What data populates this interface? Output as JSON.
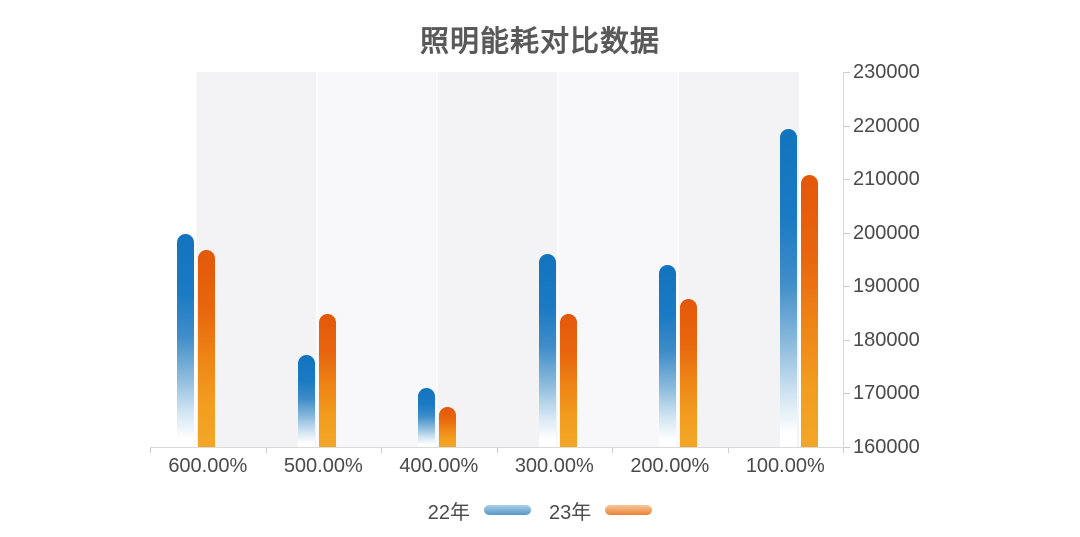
{
  "title": "照明能耗对比数据",
  "legend": {
    "items": [
      {
        "label": "22年",
        "swatch": "blue-gradient-swatch"
      },
      {
        "label": "23年",
        "swatch": "orange-gradient-swatch"
      }
    ],
    "position": "bottom-center"
  },
  "colors": {
    "title_text": "#595959",
    "axis_label_text": "#4a4a4a",
    "axis_line": "#d9d9d9",
    "tick_line": "#cccccc",
    "bar_blue_top": "#1274bd",
    "bar_blue_bottom_fade": "#ffffff",
    "bar_orange_top": "#e3580a",
    "bar_orange_bottom": "#f2a627",
    "background_band_dark": "#f3f3f6",
    "background_band_light": "#f8f8fa",
    "page_background": "#ffffff"
  },
  "chart_data": {
    "type": "bar",
    "title": "照明能耗对比数据",
    "categories": [
      "600.00%",
      "500.00%",
      "400.00%",
      "300.00%",
      "200.00%",
      "100.00%"
    ],
    "series": [
      {
        "name": "22年",
        "color_key": "blue",
        "values": [
          199800,
          177100,
          171000,
          196100,
          193900,
          219400
        ]
      },
      {
        "name": "23年",
        "color_key": "orange",
        "values": [
          196800,
          184800,
          167400,
          184900,
          187700,
          210700
        ]
      }
    ],
    "xlabel": "",
    "ylabel": "",
    "ylim": [
      160000,
      230000
    ],
    "ytick_interval": 10000,
    "ytick_labels": [
      "230000",
      "220000",
      "210000",
      "200000",
      "190000",
      "180000",
      "170000",
      "160000"
    ],
    "y_axis_side": "right",
    "grid": "vertical-alternating-bands",
    "legend_position": "bottom",
    "bar_style": "rounded-top-gradient"
  }
}
